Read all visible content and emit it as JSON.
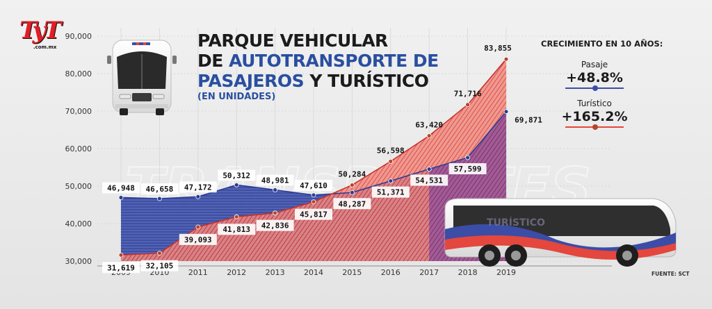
{
  "brand": {
    "logo_text": "TyT",
    "logo_domain": ".com.mx"
  },
  "title": {
    "line1": "PARQUE VEHICULAR",
    "line2_prefix": "DE ",
    "line2_blue": "AUTOTRANSPORTE DE",
    "line3_blue": "PASAJEROS",
    "line3_suffix": " Y TURÍSTICO",
    "subtitle": "(EN UNIDADES)"
  },
  "growth": {
    "heading": "CRECIMIENTO EN 10 AÑOS:",
    "pasaje": {
      "label": "Pasaje",
      "value": "+48.8%"
    },
    "turistico": {
      "label": "Turístico",
      "value": "+165.2%"
    }
  },
  "watermark": "TRANSPORTES",
  "bus_labels": {
    "side_text": "TURÍSTICO"
  },
  "source": "FUENTE: SCT",
  "colors": {
    "blue": "#3b4da6",
    "blue_dark": "#2a3d93",
    "red": "#e4473d",
    "red_dark": "#c8302a",
    "purple": "#7a3f8f",
    "title_blue": "#2a4fa0"
  },
  "chart_data": {
    "type": "area",
    "title": "PARQUE VEHICULAR DE AUTOTRANSPORTE DE PASAJEROS Y TURÍSTICO",
    "xlabel": "",
    "ylabel": "Unidades",
    "x": [
      "2009",
      "2010",
      "2011",
      "2012",
      "2013",
      "2014",
      "2015",
      "2016",
      "2017",
      "2018",
      "2019"
    ],
    "ylim": [
      30000,
      90000
    ],
    "yticks": [
      30000,
      40000,
      50000,
      60000,
      70000,
      80000,
      90000
    ],
    "ytick_labels": [
      "30,000",
      "40,000",
      "50,000",
      "60,000",
      "70,000",
      "80,000",
      "90,000"
    ],
    "series": [
      {
        "name": "Pasaje",
        "values": [
          46948,
          46658,
          47172,
          50312,
          48981,
          47610,
          48287,
          51371,
          54531,
          57599,
          69871
        ],
        "labels": [
          "46,948",
          "46,658",
          "47,172",
          "50,312",
          "48,981",
          "47,610",
          "48,287",
          "51,371",
          "54,531",
          "57,599",
          "69,871"
        ]
      },
      {
        "name": "Turístico",
        "values": [
          31619,
          32105,
          39093,
          41813,
          42836,
          45817,
          50284,
          56598,
          63420,
          71716,
          83855
        ],
        "labels": [
          "31,619",
          "32,105",
          "39,093",
          "41,813",
          "42,836",
          "45,817",
          "50,284",
          "56,598",
          "63,420",
          "71,716",
          "83,855"
        ]
      }
    ]
  }
}
